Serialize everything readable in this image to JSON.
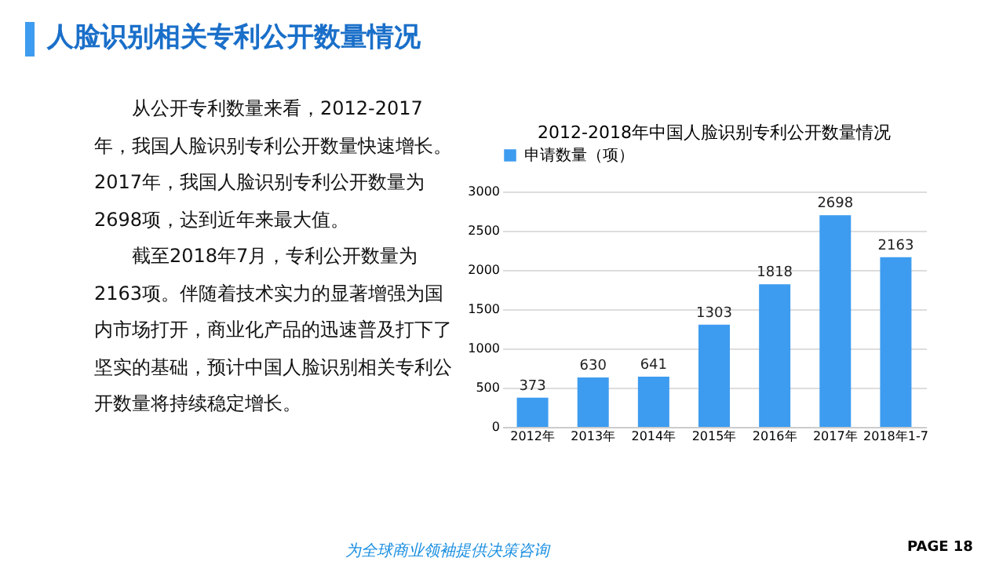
{
  "chart_data": {
    "type": "bar",
    "title": "2012-2018年中国人脸识别专利公开数量情况",
    "categories": [
      "2012年",
      "2013年",
      "2014年",
      "2015年",
      "2016年",
      "2017年",
      "2018年1-7"
    ],
    "series": [
      {
        "name": "申请数量（项）",
        "color": "#3d9cef",
        "values": [
          373,
          630,
          641,
          1303,
          1818,
          2698,
          2163
        ]
      }
    ],
    "ylim": [
      0,
      3000
    ],
    "yticks": [
      0,
      500,
      1000,
      1500,
      2000,
      2500,
      3000
    ],
    "grid": "y",
    "legend": "top",
    "data_labels": true,
    "annotations": [
      "人脸识别相关专利公开数量情况",
      "从公开专利数量来看，2012-2017年，我国人脸识别专利公开数量快速增长。2017年，我国人脸识别专利公开数量为2698项，达到近年来最大值。",
      "截至2018年7月，专利公开数量为2163项。伴随着技术实力的显著增强为国内市场打开，商业化产品的迅速普及打下了坚实的基础，预计中国人脸识别相关专利公开数量将持续稳定增长。",
      "为全球商业领袖提供决策咨询",
      "PAGE 18"
    ]
  }
}
